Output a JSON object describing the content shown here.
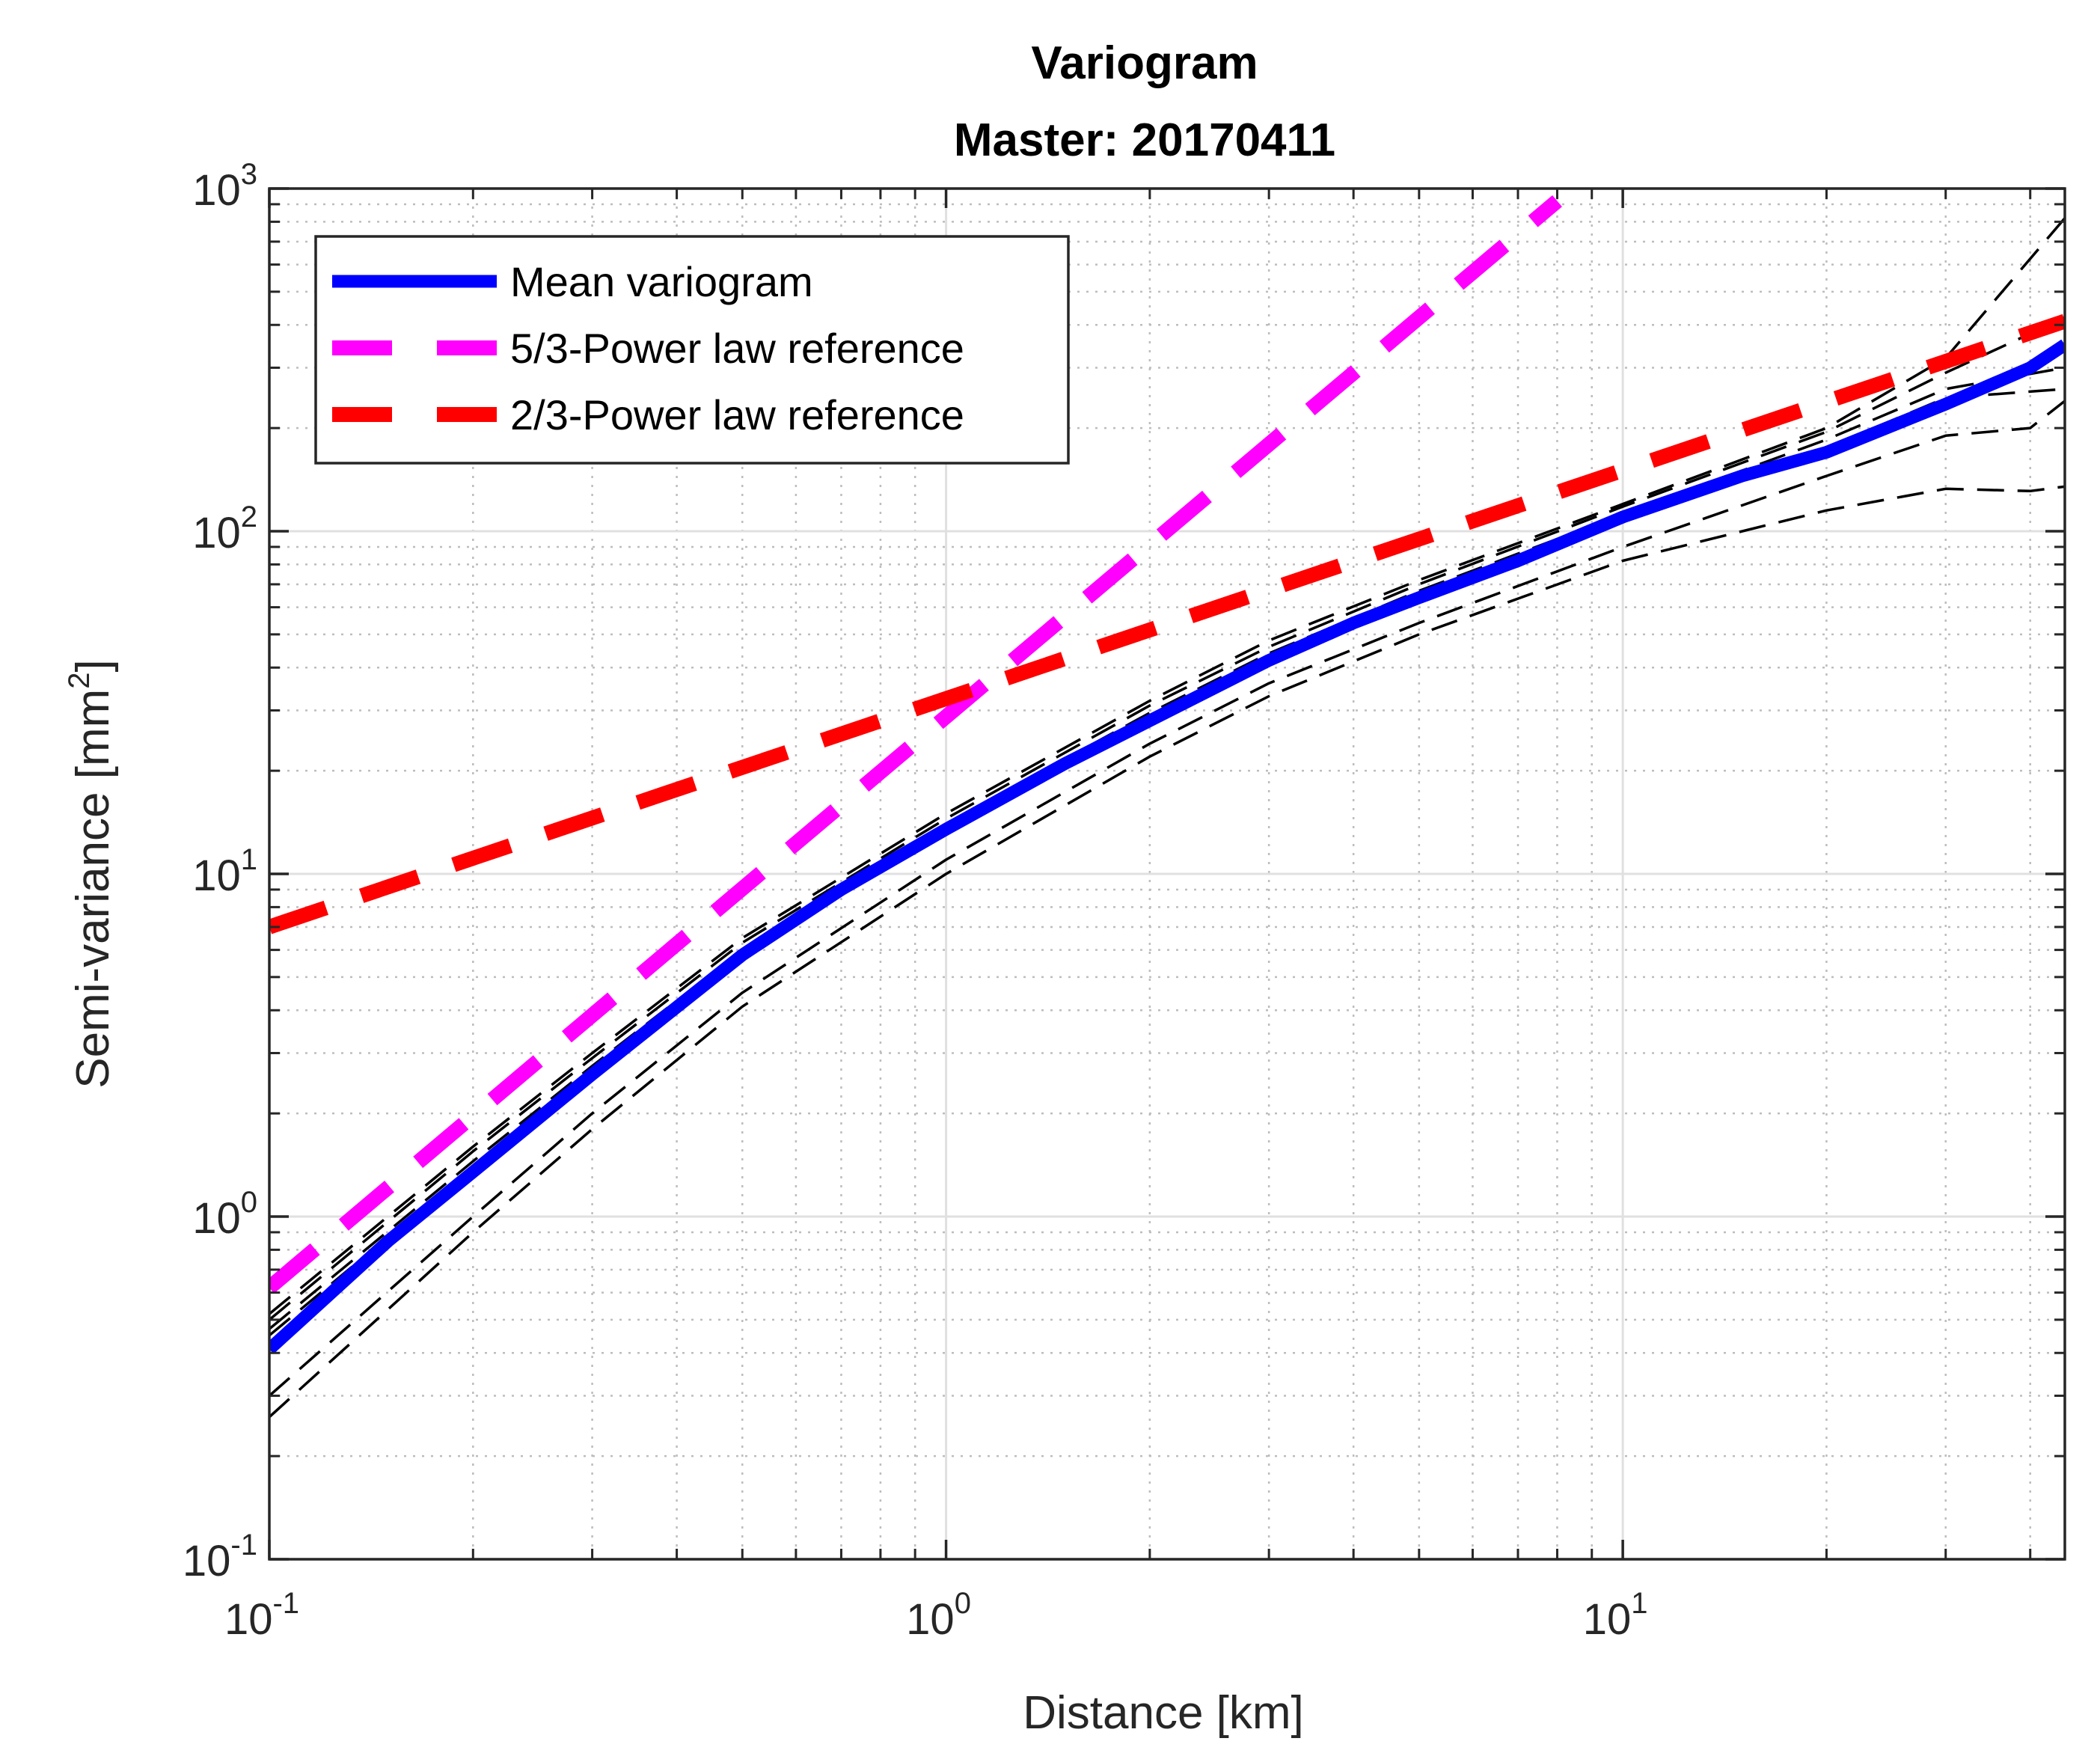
{
  "chart_data": {
    "type": "line",
    "title": "Variogram",
    "subtitle": "Master: 20170411",
    "xlabel": "Distance [km]",
    "ylabel_prefix": "Semi-variance [mm",
    "ylabel_sup": "2",
    "ylabel_suffix": "]",
    "xscale": "log",
    "yscale": "log",
    "xlim": [
      0.1,
      45
    ],
    "ylim": [
      0.1,
      1000
    ],
    "grid": true,
    "legend_position": "top-left",
    "x_ticks": [
      {
        "value": 0.1,
        "base": "10",
        "exp": "-1"
      },
      {
        "value": 1,
        "base": "10",
        "exp": "0"
      },
      {
        "value": 10,
        "base": "10",
        "exp": "1"
      }
    ],
    "y_ticks": [
      {
        "value": 0.1,
        "base": "10",
        "exp": "-1"
      },
      {
        "value": 1,
        "base": "10",
        "exp": "0"
      },
      {
        "value": 10,
        "base": "10",
        "exp": "1"
      },
      {
        "value": 100,
        "base": "10",
        "exp": "2"
      },
      {
        "value": 1000,
        "base": "10",
        "exp": "3"
      }
    ],
    "series": [
      {
        "name": "Mean variogram",
        "color": "#0000ff",
        "style": "solid",
        "in_legend": true,
        "x": [
          0.1,
          0.15,
          0.2,
          0.3,
          0.5,
          0.7,
          1.0,
          1.5,
          2,
          3,
          4,
          5,
          7,
          10,
          15,
          20,
          30,
          40,
          45
        ],
        "y": [
          0.41,
          0.85,
          1.35,
          2.6,
          5.8,
          9.0,
          13.5,
          21,
          28,
          42,
          54,
          64,
          82,
          110,
          145,
          170,
          235,
          300,
          350
        ]
      },
      {
        "name": "5/3-Power law reference",
        "color": "#ff00ff",
        "style": "dashed",
        "in_legend": true,
        "x": [
          0.1,
          8.0
        ],
        "y": [
          0.62,
          920
        ]
      },
      {
        "name": "2/3-Power law reference",
        "color": "#ff0000",
        "style": "dashed",
        "in_legend": true,
        "x": [
          0.1,
          45
        ],
        "y": [
          7.0,
          410
        ]
      },
      {
        "name": "Individual variogram 1",
        "color": "#000000",
        "style": "thin-dashed",
        "in_legend": false,
        "x": [
          0.1,
          0.2,
          0.3,
          0.5,
          1,
          2,
          3,
          5,
          10,
          20,
          30,
          45
        ],
        "y": [
          0.52,
          1.6,
          3.0,
          6.5,
          15,
          32,
          48,
          72,
          120,
          200,
          320,
          820
        ]
      },
      {
        "name": "Individual variogram 2",
        "color": "#000000",
        "style": "thin-dashed",
        "in_legend": false,
        "x": [
          0.1,
          0.2,
          0.3,
          0.5,
          1,
          2,
          3,
          5,
          10,
          20,
          30,
          45
        ],
        "y": [
          0.5,
          1.55,
          2.9,
          6.3,
          14.5,
          31,
          46,
          70,
          118,
          195,
          290,
          420
        ]
      },
      {
        "name": "Individual variogram 3",
        "color": "#000000",
        "style": "thin-dashed",
        "in_legend": false,
        "x": [
          0.1,
          0.2,
          0.3,
          0.5,
          1,
          2,
          3,
          5,
          10,
          20,
          30,
          45
        ],
        "y": [
          0.47,
          1.45,
          2.75,
          6.0,
          14,
          29.5,
          44,
          67,
          112,
          185,
          260,
          300
        ]
      },
      {
        "name": "Individual variogram 4",
        "color": "#000000",
        "style": "thin-dashed",
        "in_legend": false,
        "x": [
          0.1,
          0.2,
          0.3,
          0.5,
          1,
          2,
          3,
          5,
          10,
          20,
          30,
          45
        ],
        "y": [
          0.45,
          1.4,
          2.65,
          5.8,
          13.5,
          28.5,
          42,
          64,
          108,
          175,
          245,
          260
        ]
      },
      {
        "name": "Individual variogram 5",
        "color": "#000000",
        "style": "thin-dashed",
        "in_legend": false,
        "x": [
          0.1,
          0.2,
          0.3,
          0.5,
          1,
          2,
          3,
          5,
          10,
          20,
          30,
          40,
          45
        ],
        "y": [
          0.3,
          1.0,
          2.0,
          4.5,
          11,
          24,
          36,
          54,
          90,
          145,
          190,
          200,
          240
        ]
      },
      {
        "name": "Individual variogram 6",
        "color": "#000000",
        "style": "thin-dashed",
        "in_legend": false,
        "x": [
          0.1,
          0.2,
          0.3,
          0.5,
          1,
          2,
          3,
          5,
          10,
          20,
          30,
          40,
          45
        ],
        "y": [
          0.26,
          0.9,
          1.8,
          4.1,
          10,
          22,
          33,
          50,
          82,
          115,
          133,
          131,
          135
        ]
      }
    ]
  }
}
